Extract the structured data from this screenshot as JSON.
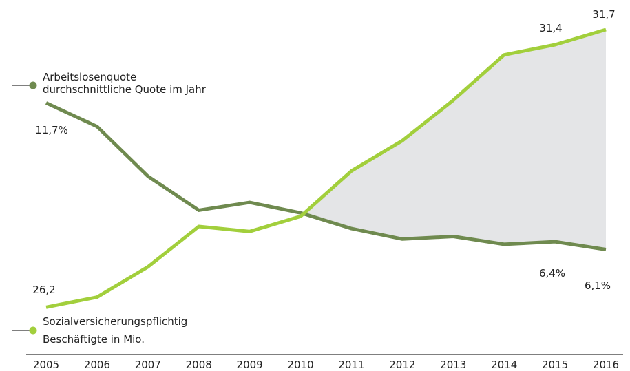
{
  "chart_data": {
    "type": "line",
    "categories": [
      "2005",
      "2006",
      "2007",
      "2008",
      "2009",
      "2010",
      "2011",
      "2012",
      "2013",
      "2014",
      "2015",
      "2016"
    ],
    "ylim": [
      3.8,
      14.5
    ],
    "y2lim": [
      26.15,
      31.7
    ],
    "series": [
      {
        "name": "Arbeitslosenquote",
        "note": "durchschnittliche Quote im Jahr",
        "color": "#6f8a4f",
        "values": [
          11.7,
          10.8,
          8.9,
          7.6,
          7.9,
          7.5,
          6.9,
          6.5,
          6.6,
          6.3,
          6.4,
          6.1
        ],
        "value_labels": [
          "11,7%",
          null,
          null,
          null,
          null,
          null,
          null,
          null,
          null,
          null,
          "6,4%",
          "6,1%"
        ]
      },
      {
        "name": "Sozialversicherungspflichtig",
        "note": "Beschäftigte in Mio.",
        "color": "#a2cf3c",
        "axis": "y2",
        "values": [
          26.2,
          26.4,
          27.0,
          27.8,
          27.7,
          28.0,
          28.9,
          29.5,
          30.3,
          31.2,
          31.4,
          31.7
        ],
        "value_labels": [
          "26,2",
          null,
          null,
          null,
          null,
          null,
          null,
          null,
          null,
          null,
          "31,4",
          "31,7"
        ]
      }
    ]
  }
}
